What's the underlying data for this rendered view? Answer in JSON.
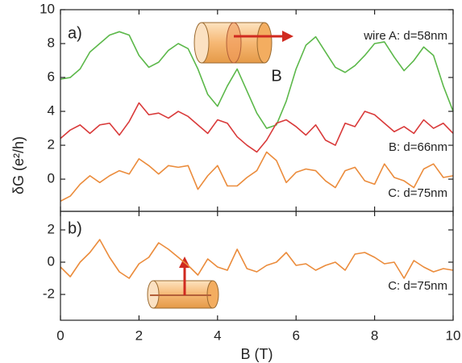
{
  "chart_data": [
    {
      "type": "line",
      "y_label": "δG (e²/h)",
      "panel_label": "a)",
      "annotations": [
        "wire A: d=58nm",
        "B",
        "B: d=66nm",
        "C: d=75nm"
      ],
      "x": [
        0,
        0.25,
        0.5,
        0.75,
        1,
        1.25,
        1.5,
        1.75,
        2,
        2.25,
        2.5,
        2.75,
        3,
        3.25,
        3.5,
        3.75,
        4,
        4.25,
        4.5,
        4.75,
        5,
        5.25,
        5.5,
        5.75,
        6,
        6.25,
        6.5,
        6.75,
        7,
        7.25,
        7.5,
        7.75,
        8,
        8.25,
        8.5,
        8.75,
        9,
        9.25,
        9.5,
        9.75,
        10
      ],
      "xlim": [
        0,
        10
      ],
      "xticks": [
        0,
        2,
        4,
        6,
        8,
        10
      ],
      "ylim": [
        -1.9,
        10
      ],
      "yticks": [
        0,
        2,
        4,
        6,
        8,
        10
      ],
      "series": [
        {
          "color": "#5cb84a",
          "values": [
            5.9,
            6.0,
            6.5,
            7.5,
            8.0,
            8.5,
            8.7,
            8.5,
            7.3,
            6.6,
            6.9,
            7.6,
            8.0,
            7.7,
            6.5,
            5.0,
            4.3,
            5.5,
            6.5,
            5.2,
            3.9,
            3.0,
            3.2,
            4.6,
            6.5,
            7.9,
            8.4,
            7.5,
            6.6,
            6.3,
            6.7,
            7.3,
            8.0,
            8.1,
            7.2,
            6.4,
            7.0,
            7.8,
            7.3,
            5.5,
            4.0
          ]
        },
        {
          "color": "#d93a3a",
          "values": [
            2.4,
            2.9,
            3.2,
            2.7,
            3.2,
            3.3,
            2.6,
            3.4,
            4.5,
            3.8,
            3.9,
            3.6,
            4.0,
            3.7,
            3.2,
            2.7,
            3.5,
            3.3,
            2.5,
            2.0,
            1.6,
            2.3,
            3.3,
            3.5,
            3.1,
            2.6,
            3.2,
            2.3,
            2.0,
            3.3,
            3.1,
            4.0,
            3.8,
            3.3,
            2.8,
            3.1,
            2.7,
            3.5,
            3.0,
            3.3,
            2.7
          ]
        },
        {
          "color": "#eb8c3c",
          "values": [
            -1.3,
            -1.0,
            -0.3,
            0.2,
            -0.2,
            0.2,
            0.5,
            0.3,
            1.2,
            0.8,
            0.3,
            0.8,
            0.7,
            0.8,
            -0.6,
            0.2,
            0.8,
            -0.4,
            -0.4,
            0.1,
            0.5,
            1.6,
            1.1,
            -0.2,
            0.4,
            0.6,
            0.5,
            -0.1,
            -0.5,
            0.5,
            0.7,
            -0.1,
            -0.3,
            0.9,
            0.1,
            -0.1,
            -0.5,
            0.6,
            0.9,
            0.1,
            0.2
          ]
        }
      ]
    },
    {
      "type": "line",
      "x_label": "B (T)",
      "panel_label": "b)",
      "annotations": [
        "C: d=75nm"
      ],
      "x": [
        0,
        0.25,
        0.5,
        0.75,
        1,
        1.25,
        1.5,
        1.75,
        2,
        2.25,
        2.5,
        2.75,
        3,
        3.25,
        3.5,
        3.75,
        4,
        4.25,
        4.5,
        4.75,
        5,
        5.25,
        5.5,
        5.75,
        6,
        6.25,
        6.5,
        6.75,
        7,
        7.25,
        7.5,
        7.75,
        8,
        8.25,
        8.5,
        8.75,
        9,
        9.25,
        9.5,
        9.75,
        10
      ],
      "xlim": [
        0,
        10
      ],
      "xticks": [
        0,
        2,
        4,
        6,
        8,
        10
      ],
      "ylim": [
        -3.6,
        3.15
      ],
      "yticks": [
        -2,
        0,
        2
      ],
      "series": [
        {
          "color": "#eb8c3c",
          "values": [
            -0.3,
            -0.9,
            0.0,
            0.6,
            1.4,
            0.3,
            -0.6,
            -1.0,
            -0.1,
            0.3,
            1.2,
            0.8,
            0.3,
            -0.2,
            -0.8,
            0.2,
            -0.3,
            -0.5,
            0.8,
            -0.4,
            -0.6,
            -0.2,
            0.0,
            0.6,
            -0.2,
            -0.1,
            -0.5,
            -0.2,
            0.0,
            -0.5,
            0.5,
            0.6,
            0.3,
            -0.1,
            0.0,
            -1.0,
            0.1,
            -0.3,
            -0.6,
            -0.4,
            -0.5
          ]
        }
      ]
    }
  ]
}
